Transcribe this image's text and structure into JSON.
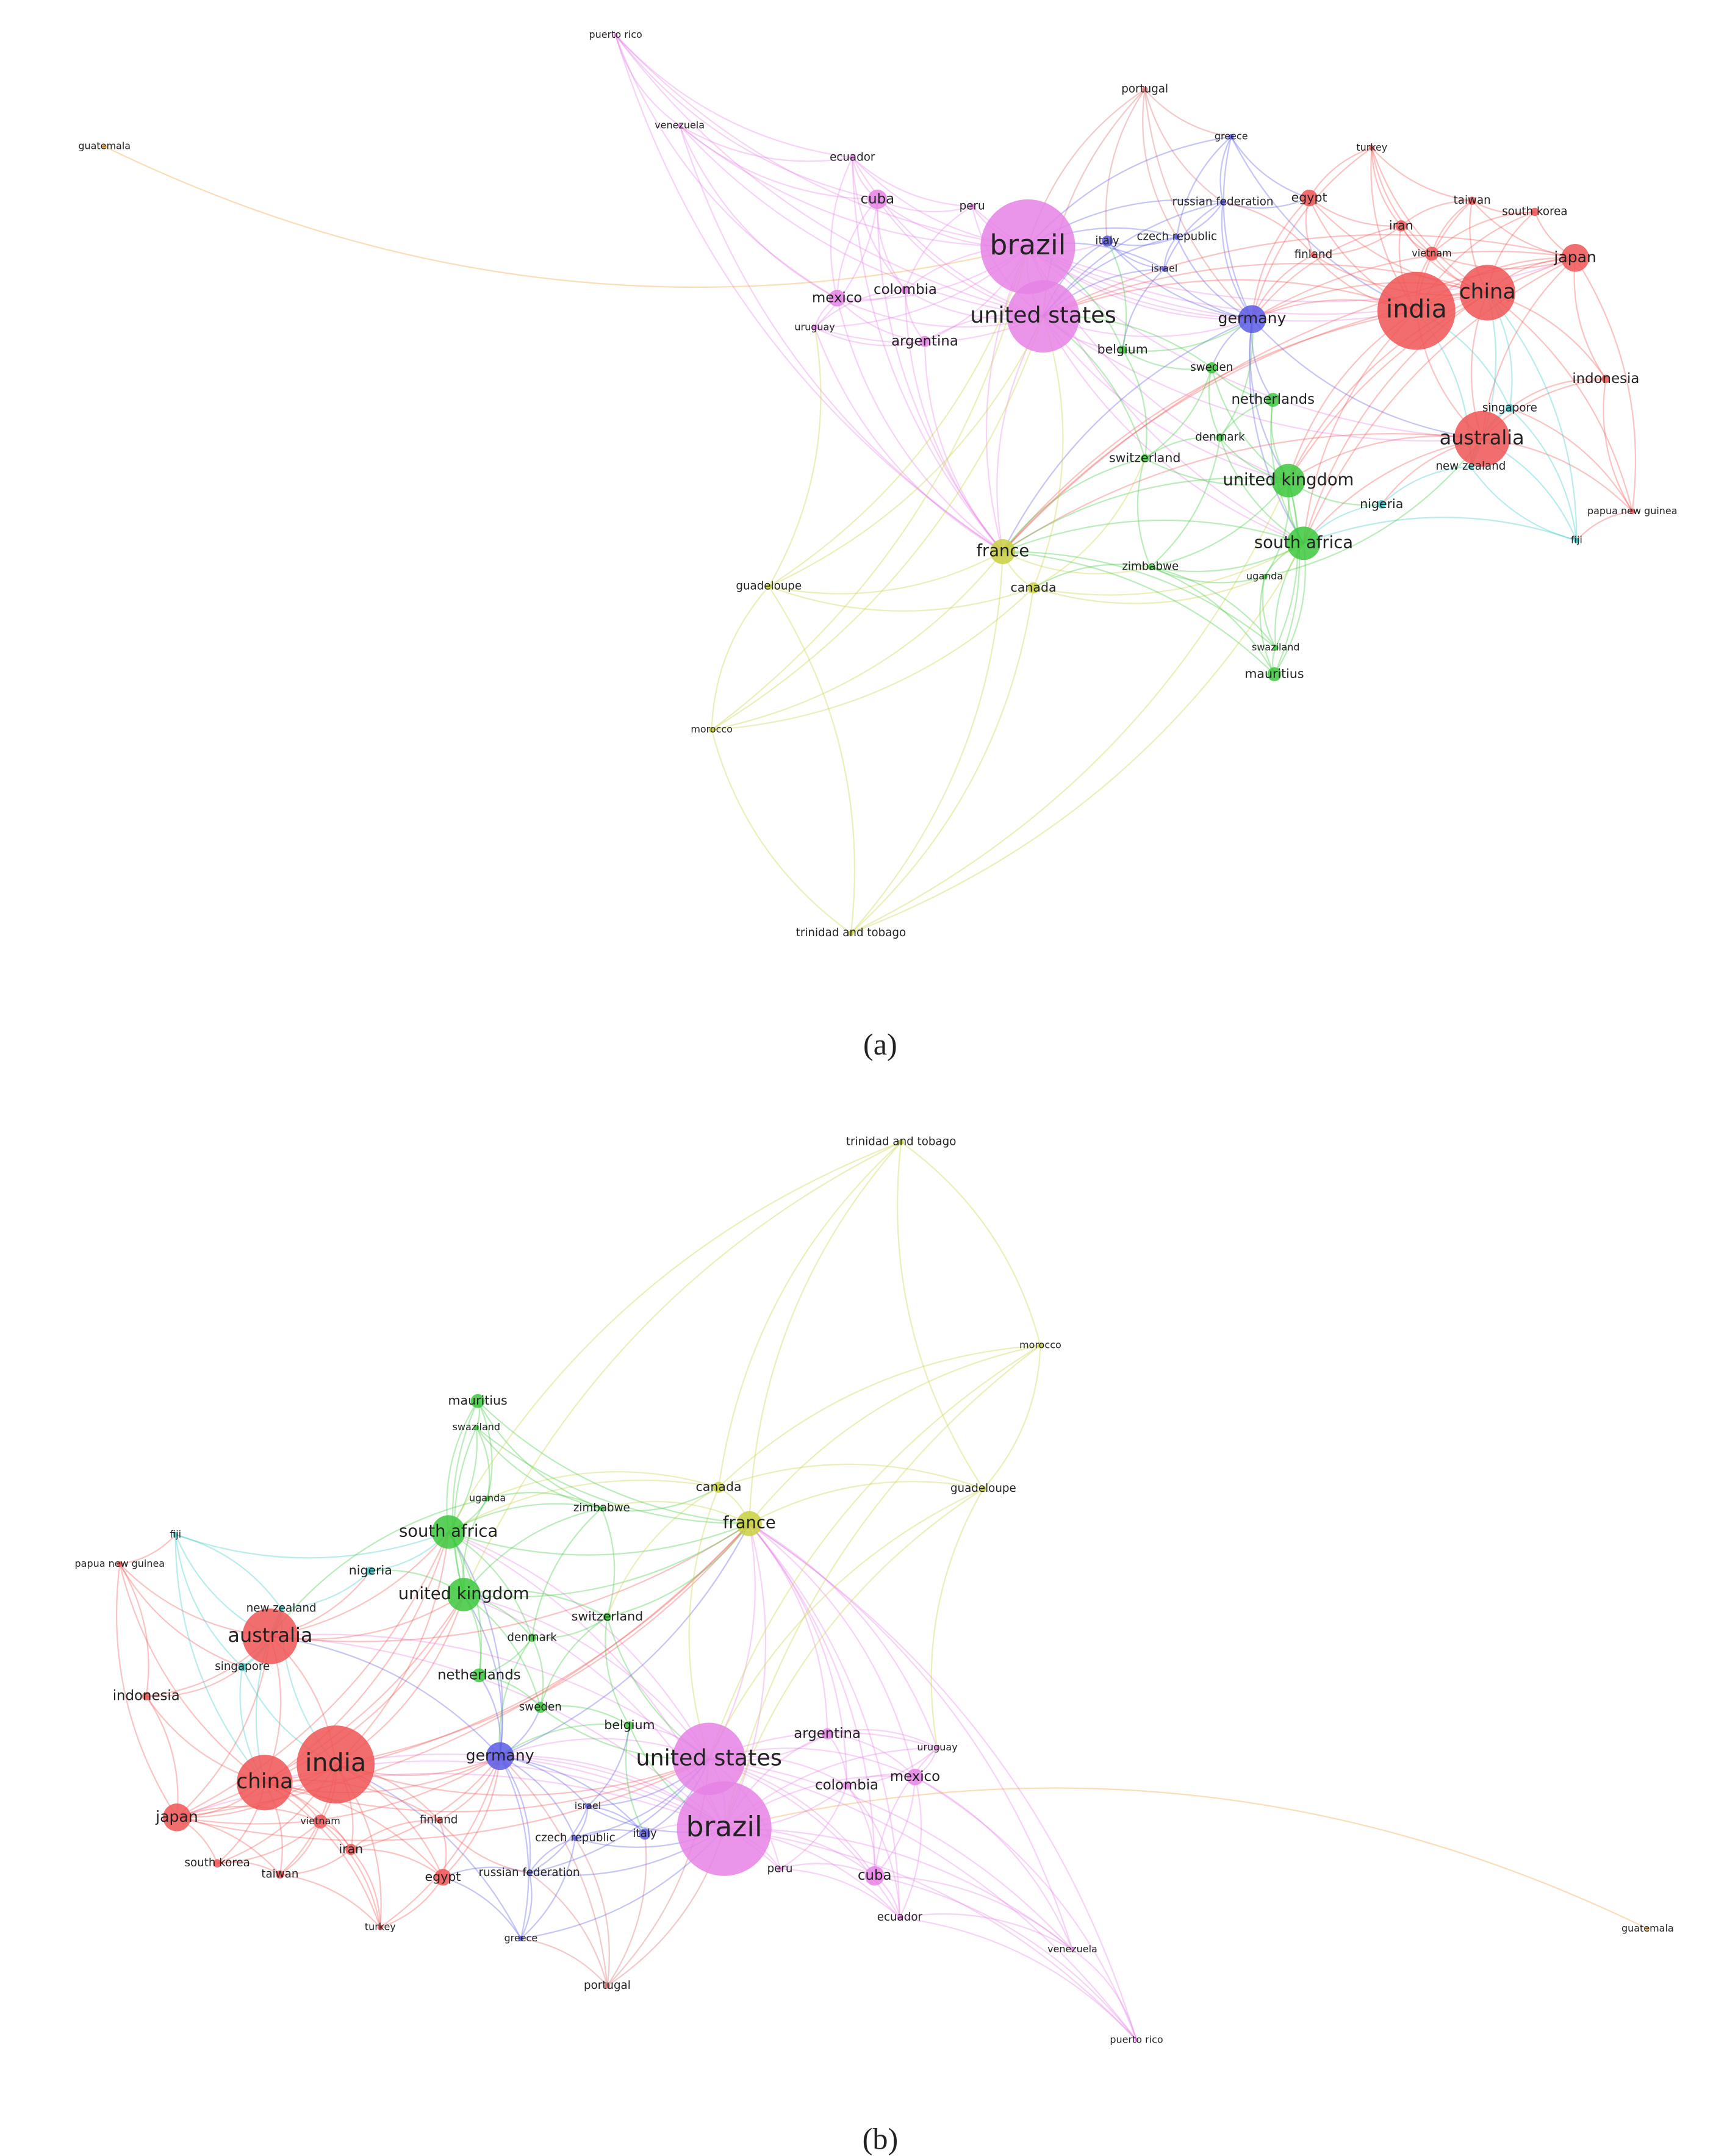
{
  "panels": [
    {
      "caption": "(a)",
      "nodes": [
        {
          "label": "puerto rico"
        },
        {
          "label": "venezuela"
        },
        {
          "label": "guatemala"
        },
        {
          "label": "portugal"
        },
        {
          "label": "ecuador"
        },
        {
          "label": "greece"
        },
        {
          "label": "turkey"
        },
        {
          "label": "cuba"
        },
        {
          "label": "peru"
        },
        {
          "label": "brazil"
        },
        {
          "label": "italy"
        },
        {
          "label": "czech republic"
        },
        {
          "label": "russian federation"
        },
        {
          "label": "egypt"
        },
        {
          "label": "taiwan"
        },
        {
          "label": "south korea"
        },
        {
          "label": "iran"
        },
        {
          "label": "israel"
        },
        {
          "label": "finland"
        },
        {
          "label": "vietnam"
        },
        {
          "label": "japan"
        },
        {
          "label": "china"
        },
        {
          "label": "india"
        },
        {
          "label": "mexico"
        },
        {
          "label": "colombia"
        },
        {
          "label": "uruguay"
        },
        {
          "label": "united states"
        },
        {
          "label": "argentina"
        },
        {
          "label": "germany"
        },
        {
          "label": "belgium"
        },
        {
          "label": "sweden"
        },
        {
          "label": "indonesia"
        },
        {
          "label": "netherlands"
        },
        {
          "label": "singapore"
        },
        {
          "label": "denmark"
        },
        {
          "label": "australia"
        },
        {
          "label": "switzerland"
        },
        {
          "label": "new zealand"
        },
        {
          "label": "united kingdom"
        },
        {
          "label": "nigeria"
        },
        {
          "label": "papua new guinea"
        },
        {
          "label": "south africa"
        },
        {
          "label": "fiji"
        },
        {
          "label": "france"
        },
        {
          "label": "zimbabwe"
        },
        {
          "label": "uganda"
        },
        {
          "label": "guadeloupe"
        },
        {
          "label": "canada"
        },
        {
          "label": "swaziland"
        },
        {
          "label": "mauritius"
        },
        {
          "label": "morocco"
        },
        {
          "label": "trinidad and tobago"
        }
      ]
    },
    {
      "caption": "(b)",
      "nodes": [
        {
          "label": "puerto rico"
        },
        {
          "label": "venezuela"
        },
        {
          "label": "guatemala"
        },
        {
          "label": "portugal"
        },
        {
          "label": "ecuador"
        },
        {
          "label": "greece"
        },
        {
          "label": "turkey"
        },
        {
          "label": "cuba"
        },
        {
          "label": "peru"
        },
        {
          "label": "brazil"
        },
        {
          "label": "italy"
        },
        {
          "label": "czech republic"
        },
        {
          "label": "russian federation"
        },
        {
          "label": "egypt"
        },
        {
          "label": "taiwan"
        },
        {
          "label": "south korea"
        },
        {
          "label": "iran"
        },
        {
          "label": "israel"
        },
        {
          "label": "finland"
        },
        {
          "label": "vietnam"
        },
        {
          "label": "japan"
        },
        {
          "label": "china"
        },
        {
          "label": "india"
        },
        {
          "label": "mexico"
        },
        {
          "label": "colombia"
        },
        {
          "label": "uruguay"
        },
        {
          "label": "united states"
        },
        {
          "label": "argentina"
        },
        {
          "label": "germany"
        },
        {
          "label": "belgium"
        },
        {
          "label": "sweden"
        },
        {
          "label": "indonesia"
        },
        {
          "label": "netherlands"
        },
        {
          "label": "singapore"
        },
        {
          "label": "denmark"
        },
        {
          "label": "australia"
        },
        {
          "label": "switzerland"
        },
        {
          "label": "new zealand"
        },
        {
          "label": "united kingdom"
        },
        {
          "label": "nigeria"
        },
        {
          "label": "papua new guinea"
        },
        {
          "label": "south africa"
        },
        {
          "label": "fiji"
        },
        {
          "label": "france"
        },
        {
          "label": "zimbabwe"
        },
        {
          "label": "uganda"
        },
        {
          "label": "guadeloupe"
        },
        {
          "label": "canada"
        },
        {
          "label": "swaziland"
        },
        {
          "label": "mauritius"
        },
        {
          "label": "morocco"
        },
        {
          "label": "trinidad and tobago"
        }
      ]
    }
  ]
}
